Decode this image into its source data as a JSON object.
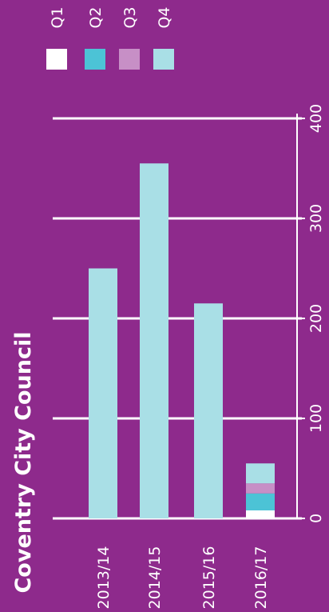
{
  "chart_data": {
    "type": "bar",
    "stacked": true,
    "orientation": "vertical bars, chart rotated 90° clockwise (text vertical)",
    "title": "Coventry City Council",
    "categories": [
      "2013/14",
      "2014/15",
      "2015/16",
      "2016/17"
    ],
    "series": [
      {
        "name": "Q1",
        "color": "#ffffff",
        "values": [
          0,
          0,
          0,
          8
        ]
      },
      {
        "name": "Q2",
        "color": "#4cc3d6",
        "values": [
          0,
          0,
          0,
          17
        ]
      },
      {
        "name": "Q3",
        "color": "#c78fc6",
        "values": [
          0,
          0,
          0,
          10
        ]
      },
      {
        "name": "Q4",
        "color": "#a9dfe6",
        "values": [
          250,
          355,
          215,
          20
        ]
      }
    ],
    "y_ticks": [
      0,
      100,
      200,
      300,
      400
    ],
    "ylim": [
      0,
      400
    ],
    "grid": true,
    "legend_position": "top"
  },
  "colors": {
    "background": "#8e2a8c",
    "axis": "#ffffff",
    "text": "#ffffff"
  }
}
